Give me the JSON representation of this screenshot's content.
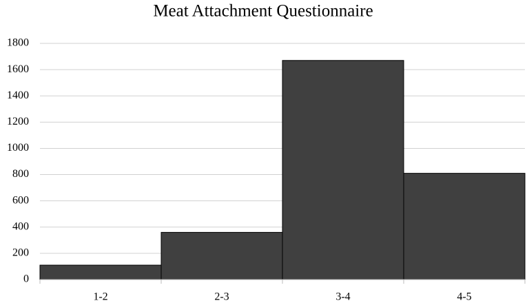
{
  "chart_data": {
    "type": "bar",
    "title": "Meat Attachment Questionnaire",
    "categories": [
      "1-2",
      "2-3",
      "3-4",
      "4-5"
    ],
    "values": [
      110,
      360,
      1670,
      810
    ],
    "color": "#404040",
    "ylim": [
      0,
      1800
    ],
    "yticks": [
      0,
      200,
      400,
      600,
      800,
      1000,
      1200,
      1400,
      1600,
      1800
    ],
    "grid": true
  }
}
